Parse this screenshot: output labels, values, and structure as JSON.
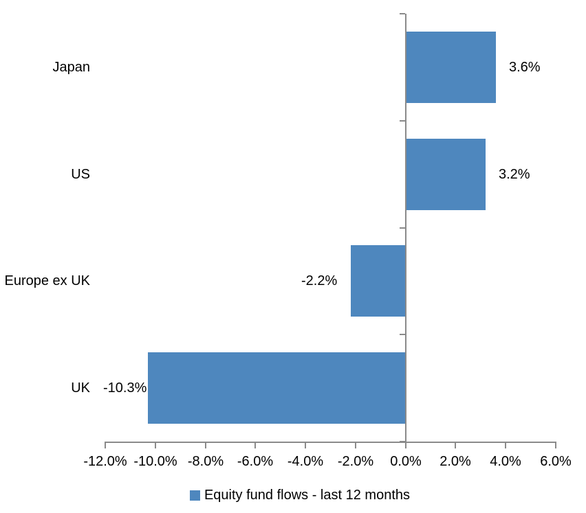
{
  "chart_data": {
    "type": "bar",
    "orientation": "horizontal",
    "title": "",
    "categories": [
      "Japan",
      "US",
      "Europe ex UK",
      "UK"
    ],
    "values": [
      3.6,
      3.2,
      -2.2,
      -10.3
    ],
    "data_labels": [
      "3.6%",
      "3.2%",
      "-2.2%",
      "-10.3%"
    ],
    "xlim": [
      -12,
      6
    ],
    "x_tick_values": [
      -12,
      -10,
      -8,
      -6,
      -4,
      -2,
      0,
      2,
      4,
      6
    ],
    "x_tick_labels": [
      "-12.0%",
      "-10.0%",
      "-8.0%",
      "-6.0%",
      "-4.0%",
      "-2.0%",
      "0.0%",
      "2.0%",
      "4.0%",
      "6.0%"
    ],
    "grid": false,
    "bar_color": "#4E87BE",
    "axis_color": "#8A8A8A",
    "text_color": "#000000",
    "legend": {
      "position": "bottom",
      "entries": [
        {
          "label": "Equity fund flows - last 12 months",
          "marker_color": "#4E87BE"
        }
      ]
    }
  }
}
